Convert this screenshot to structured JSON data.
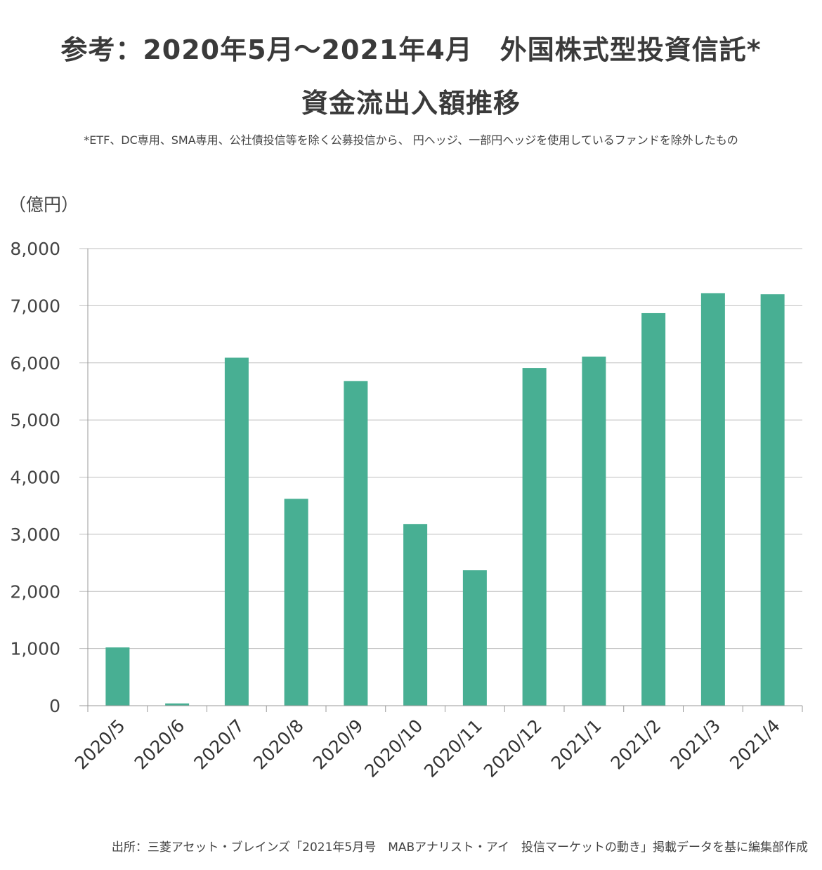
{
  "title_line1": "参考：2020年5月～2021年4月　外国株式型投資信託*",
  "title_line2": "資金流出入額推移",
  "note": "*ETF、DC専用、SMA専用、公社債投信等を除く公募投信から、 円ヘッジ、一部円ヘッジを使用しているファンドを除外したもの",
  "unit": "（億円）",
  "source": "出所：三菱アセット・ブレインズ「2021年5月号　MABアナリスト・アイ　投信マーケットの動き」掲載データを基に編集部作成",
  "colors": {
    "bar": "#48AF93",
    "grid": "#BFBFBF",
    "axis": "#999999"
  },
  "chart_data": {
    "type": "bar",
    "categories": [
      "2020/5",
      "2020/6",
      "2020/7",
      "2020/8",
      "2020/9",
      "2020/10",
      "2020/11",
      "2020/12",
      "2021/1",
      "2021/2",
      "2021/3",
      "2021/4"
    ],
    "values": [
      1020,
      40,
      6090,
      3620,
      5680,
      3180,
      2370,
      5910,
      6110,
      6870,
      7220,
      7200
    ],
    "ylim": [
      0,
      8000
    ],
    "yticks": [
      "0",
      "1,000",
      "2,000",
      "3,000",
      "4,000",
      "5,000",
      "6,000",
      "7,000",
      "8,000"
    ],
    "grid": true
  }
}
